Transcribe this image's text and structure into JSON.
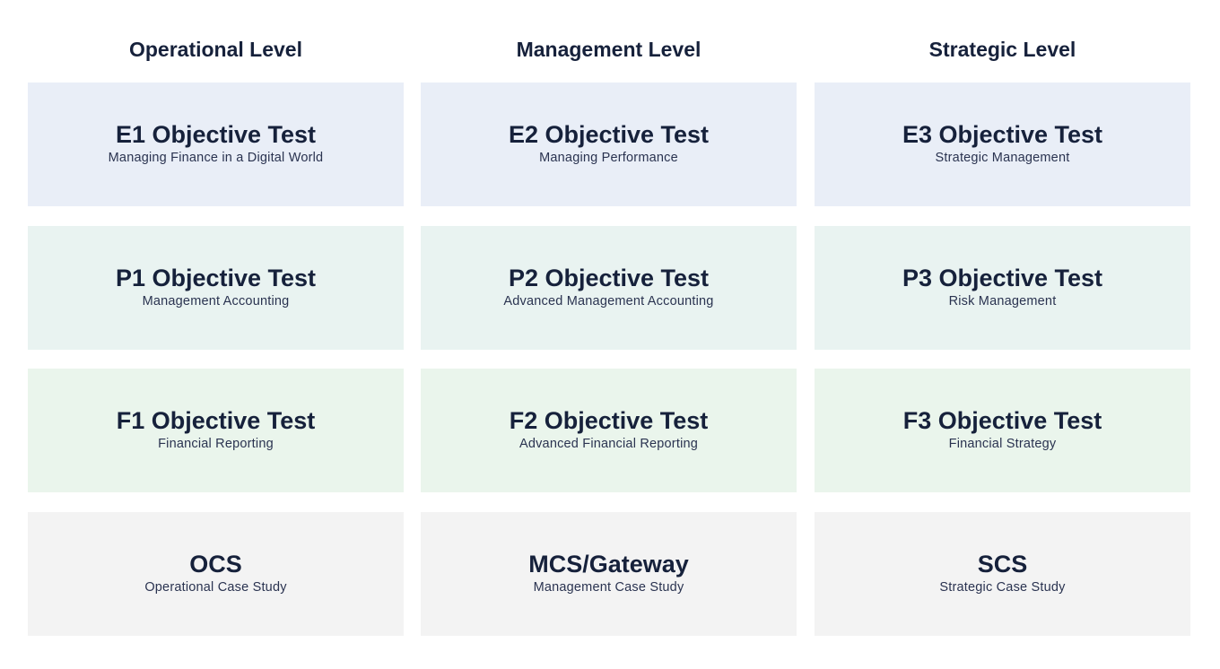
{
  "columns": [
    {
      "header": "Operational Level",
      "cards": [
        {
          "title": "E1 Objective Test",
          "subtitle": "Managing Finance in a Digital World"
        },
        {
          "title": "P1 Objective Test",
          "subtitle": "Management Accounting"
        },
        {
          "title": "F1 Objective Test",
          "subtitle": "Financial Reporting"
        },
        {
          "title": "OCS",
          "subtitle": "Operational Case Study"
        }
      ]
    },
    {
      "header": "Management Level",
      "cards": [
        {
          "title": "E2 Objective Test",
          "subtitle": "Managing Performance"
        },
        {
          "title": "P2 Objective Test",
          "subtitle": "Advanced Management Accounting"
        },
        {
          "title": "F2 Objective Test",
          "subtitle": "Advanced Financial Reporting"
        },
        {
          "title": "MCS/Gateway",
          "subtitle": "Management Case Study"
        }
      ]
    },
    {
      "header": "Strategic Level",
      "cards": [
        {
          "title": "E3 Objective Test",
          "subtitle": "Strategic Management"
        },
        {
          "title": "P3 Objective Test",
          "subtitle": "Risk Management"
        },
        {
          "title": "F3 Objective Test",
          "subtitle": "Financial Strategy"
        },
        {
          "title": "SCS",
          "subtitle": "Strategic Case Study"
        }
      ]
    }
  ],
  "row_colors": [
    "#e9eef7",
    "#e9f3f1",
    "#eaf5ec",
    "#f3f3f3"
  ]
}
